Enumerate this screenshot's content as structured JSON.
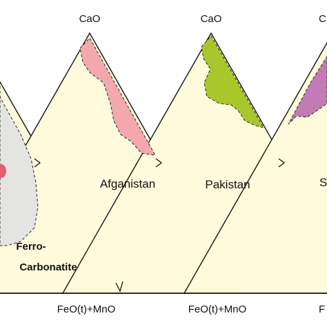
{
  "apex_labels": [
    "CaO",
    "CaO",
    "C"
  ],
  "base_labels": [
    "FeO(t)+MnO",
    "FeO(t)+MnO",
    "F"
  ],
  "region_labels": [
    "Afganistan",
    "Pakistan",
    "S"
  ],
  "field_label": [
    "Ferro-",
    "Carbonatite"
  ]
}
